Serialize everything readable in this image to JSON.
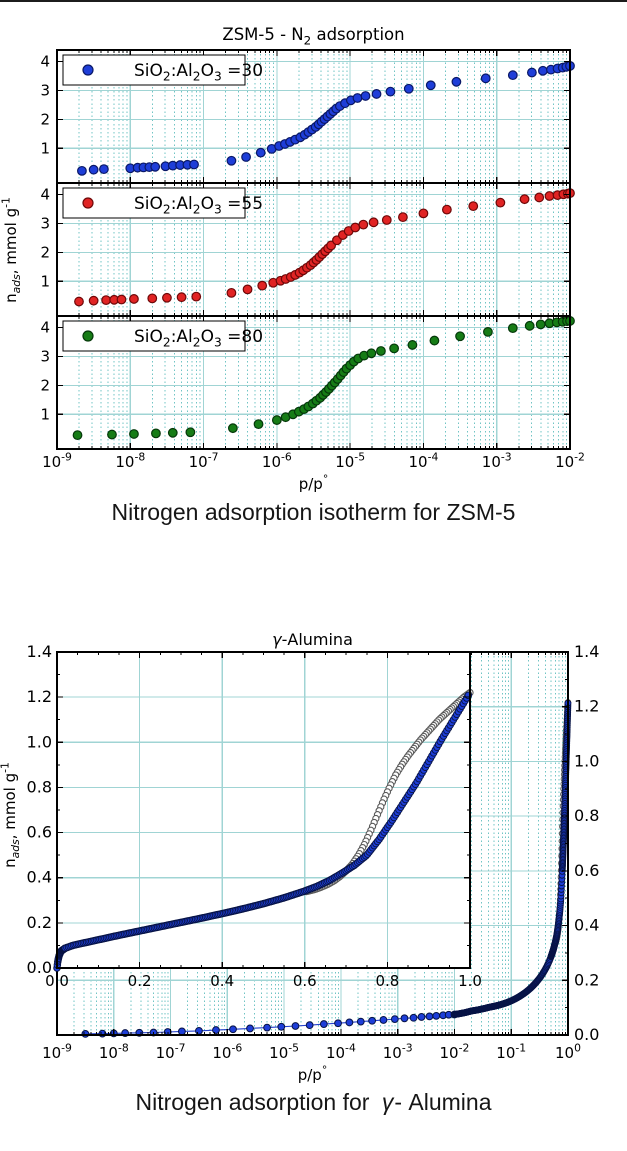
{
  "captions": {
    "fig1": "Nitrogen adsorption isotherm for ZSM-5",
    "fig2_pre": "Nitrogen adsorption for ",
    "fig2_gamma": "γ",
    "fig2_post": "- Alumina"
  },
  "style": {
    "grid_major": "#a0d4d4",
    "grid_minor": "#70c4c4",
    "axis_color": "#000000",
    "text_color": "#000000",
    "top_border": "#1c1c1c"
  },
  "chart_data": [
    {
      "id": "zsm5",
      "type": "scatter",
      "title": "ZSM-5 - N_{2} adsorption",
      "xlabel": "p/p^{°}",
      "ylabel": "n_{ads}, mmol g^{-1}",
      "xscale": "log",
      "xtick_exponents": [
        -9,
        -8,
        -7,
        -6,
        -5,
        -4,
        -3,
        -2
      ],
      "ylim": [
        -0.2,
        4.4
      ],
      "yticks": [
        1,
        2,
        3,
        4
      ],
      "grid": "major solid + minor dotted (log decades)",
      "legend_position": "upper left",
      "series": [
        {
          "name": "ratio-30",
          "legend": "SiO_{2}:Al_{2}O_{3} =30",
          "color": "#1e3ed8",
          "edge": "#0a1866",
          "points": [
            [
              -8.66,
              0.22
            ],
            [
              -8.5,
              0.26
            ],
            [
              -8.36,
              0.28
            ],
            [
              -8.0,
              0.31
            ],
            [
              -7.9,
              0.33
            ],
            [
              -7.82,
              0.34
            ],
            [
              -7.74,
              0.35
            ],
            [
              -7.66,
              0.36
            ],
            [
              -7.52,
              0.38
            ],
            [
              -7.42,
              0.4
            ],
            [
              -7.32,
              0.42
            ],
            [
              -7.22,
              0.43
            ],
            [
              -7.13,
              0.44
            ],
            [
              -6.62,
              0.57
            ],
            [
              -6.42,
              0.7
            ],
            [
              -6.22,
              0.85
            ],
            [
              -6.07,
              0.98
            ],
            [
              -5.97,
              1.08
            ],
            [
              -5.89,
              1.15
            ],
            [
              -5.82,
              1.22
            ],
            [
              -5.75,
              1.3
            ],
            [
              -5.68,
              1.38
            ],
            [
              -5.62,
              1.47
            ],
            [
              -5.57,
              1.56
            ],
            [
              -5.52,
              1.65
            ],
            [
              -5.47,
              1.74
            ],
            [
              -5.43,
              1.83
            ],
            [
              -5.39,
              1.92
            ],
            [
              -5.35,
              2.01
            ],
            [
              -5.31,
              2.1
            ],
            [
              -5.27,
              2.19
            ],
            [
              -5.23,
              2.28
            ],
            [
              -5.19,
              2.37
            ],
            [
              -5.14,
              2.46
            ],
            [
              -5.07,
              2.56
            ],
            [
              -4.99,
              2.66
            ],
            [
              -4.9,
              2.74
            ],
            [
              -4.79,
              2.81
            ],
            [
              -4.64,
              2.88
            ],
            [
              -4.45,
              2.96
            ],
            [
              -4.2,
              3.06
            ],
            [
              -3.9,
              3.18
            ],
            [
              -3.55,
              3.3
            ],
            [
              -3.15,
              3.42
            ],
            [
              -2.78,
              3.53
            ],
            [
              -2.52,
              3.62
            ],
            [
              -2.37,
              3.68
            ],
            [
              -2.26,
              3.72
            ],
            [
              -2.17,
              3.76
            ],
            [
              -2.1,
              3.79
            ],
            [
              -2.05,
              3.82
            ],
            [
              -2.0,
              3.85
            ]
          ]
        },
        {
          "name": "ratio-55",
          "legend": "SiO_{2}:Al_{2}O_{3} =55",
          "color": "#e02424",
          "edge": "#6e0808",
          "points": [
            [
              -8.7,
              0.3
            ],
            [
              -8.5,
              0.33
            ],
            [
              -8.33,
              0.35
            ],
            [
              -8.22,
              0.36
            ],
            [
              -8.12,
              0.37
            ],
            [
              -7.95,
              0.39
            ],
            [
              -7.7,
              0.41
            ],
            [
              -7.5,
              0.43
            ],
            [
              -7.3,
              0.45
            ],
            [
              -7.1,
              0.47
            ],
            [
              -6.62,
              0.6
            ],
            [
              -6.4,
              0.72
            ],
            [
              -6.2,
              0.85
            ],
            [
              -6.05,
              0.95
            ],
            [
              -5.95,
              1.02
            ],
            [
              -5.88,
              1.08
            ],
            [
              -5.81,
              1.15
            ],
            [
              -5.75,
              1.22
            ],
            [
              -5.69,
              1.3
            ],
            [
              -5.64,
              1.38
            ],
            [
              -5.59,
              1.47
            ],
            [
              -5.54,
              1.56
            ],
            [
              -5.5,
              1.65
            ],
            [
              -5.46,
              1.74
            ],
            [
              -5.42,
              1.84
            ],
            [
              -5.38,
              1.94
            ],
            [
              -5.34,
              2.04
            ],
            [
              -5.3,
              2.14
            ],
            [
              -5.26,
              2.24
            ],
            [
              -5.18,
              2.42
            ],
            [
              -5.1,
              2.6
            ],
            [
              -5.02,
              2.74
            ],
            [
              -4.93,
              2.86
            ],
            [
              -4.82,
              2.96
            ],
            [
              -4.68,
              3.04
            ],
            [
              -4.5,
              3.12
            ],
            [
              -4.28,
              3.22
            ],
            [
              -4.0,
              3.35
            ],
            [
              -3.68,
              3.48
            ],
            [
              -3.32,
              3.6
            ],
            [
              -2.95,
              3.72
            ],
            [
              -2.62,
              3.84
            ],
            [
              -2.42,
              3.9
            ],
            [
              -2.28,
              3.95
            ],
            [
              -2.17,
              3.98
            ],
            [
              -2.09,
              4.01
            ],
            [
              -2.03,
              4.03
            ],
            [
              -2.0,
              4.05
            ]
          ]
        },
        {
          "name": "ratio-80",
          "legend": "SiO_{2}:Al_{2}O_{3} =80",
          "color": "#167c16",
          "edge": "#05380a",
          "points": [
            [
              -8.72,
              0.28
            ],
            [
              -8.25,
              0.3
            ],
            [
              -7.95,
              0.32
            ],
            [
              -7.65,
              0.34
            ],
            [
              -7.42,
              0.36
            ],
            [
              -7.18,
              0.38
            ],
            [
              -6.6,
              0.52
            ],
            [
              -6.25,
              0.66
            ],
            [
              -6.0,
              0.8
            ],
            [
              -5.88,
              0.9
            ],
            [
              -5.78,
              1.0
            ],
            [
              -5.7,
              1.09
            ],
            [
              -5.63,
              1.18
            ],
            [
              -5.57,
              1.27
            ],
            [
              -5.51,
              1.37
            ],
            [
              -5.46,
              1.47
            ],
            [
              -5.41,
              1.57
            ],
            [
              -5.37,
              1.67
            ],
            [
              -5.33,
              1.77
            ],
            [
              -5.29,
              1.88
            ],
            [
              -5.25,
              1.99
            ],
            [
              -5.21,
              2.1
            ],
            [
              -5.17,
              2.22
            ],
            [
              -5.13,
              2.34
            ],
            [
              -5.09,
              2.46
            ],
            [
              -5.05,
              2.58
            ],
            [
              -5.0,
              2.7
            ],
            [
              -4.95,
              2.82
            ],
            [
              -4.89,
              2.93
            ],
            [
              -4.81,
              3.03
            ],
            [
              -4.71,
              3.11
            ],
            [
              -4.58,
              3.19
            ],
            [
              -4.4,
              3.28
            ],
            [
              -4.15,
              3.4
            ],
            [
              -3.85,
              3.55
            ],
            [
              -3.5,
              3.7
            ],
            [
              -3.12,
              3.85
            ],
            [
              -2.78,
              3.98
            ],
            [
              -2.55,
              4.06
            ],
            [
              -2.4,
              4.11
            ],
            [
              -2.28,
              4.15
            ],
            [
              -2.18,
              4.18
            ],
            [
              -2.1,
              4.2
            ],
            [
              -2.04,
              4.22
            ],
            [
              -2.0,
              4.23
            ]
          ]
        }
      ]
    },
    {
      "id": "gamma-alumina",
      "type": "scatter-line with inset",
      "title_italic": "γ",
      "title_rest": "-Alumina",
      "xlabel": "p/p^{°}",
      "ylabel": "n_{ads}, mmol g^{-1}",
      "xscale": "log",
      "xtick_exponents": [
        -9,
        -8,
        -7,
        -6,
        -5,
        -4,
        -3,
        -2,
        -1,
        0
      ],
      "ylim": [
        0,
        1.4
      ],
      "yticks_right": [
        0.0,
        0.2,
        0.4,
        0.6,
        0.8,
        1.0,
        1.2,
        1.4
      ],
      "colors": {
        "adsorption_fill": "#1e3ed8",
        "adsorption_edge": "#071345",
        "line": "#2340cc",
        "desorption_edge": "#5a5a5a",
        "desorption_fill": "#ffffff"
      },
      "main_sparse_logx_y": [
        [
          -8.5,
          0.004
        ],
        [
          -8.2,
          0.005
        ],
        [
          -8.0,
          0.006
        ],
        [
          -7.8,
          0.007
        ],
        [
          -7.55,
          0.008
        ],
        [
          -7.3,
          0.009
        ],
        [
          -7.05,
          0.011
        ],
        [
          -6.8,
          0.013
        ],
        [
          -6.5,
          0.015
        ],
        [
          -6.2,
          0.018
        ],
        [
          -5.9,
          0.021
        ],
        [
          -5.6,
          0.024
        ],
        [
          -5.3,
          0.027
        ],
        [
          -5.05,
          0.03
        ],
        [
          -4.8,
          0.033
        ],
        [
          -4.55,
          0.036
        ],
        [
          -4.3,
          0.04
        ],
        [
          -4.05,
          0.043
        ],
        [
          -3.85,
          0.046
        ],
        [
          -3.65,
          0.049
        ],
        [
          -3.45,
          0.052
        ],
        [
          -3.25,
          0.055
        ],
        [
          -3.05,
          0.058
        ],
        [
          -2.88,
          0.061
        ],
        [
          -2.72,
          0.063
        ],
        [
          -2.58,
          0.066
        ],
        [
          -2.44,
          0.068
        ],
        [
          -2.32,
          0.07
        ],
        [
          -2.2,
          0.072
        ],
        [
          -2.1,
          0.074
        ],
        [
          -2.0,
          0.075
        ]
      ],
      "adsorption_p_y": [
        [
          0,
          0
        ],
        [
          0.002,
          0.03
        ],
        [
          0.005,
          0.055
        ],
        [
          0.01,
          0.075
        ],
        [
          0.02,
          0.088
        ],
        [
          0.04,
          0.101
        ],
        [
          0.07,
          0.113
        ],
        [
          0.1,
          0.125
        ],
        [
          0.15,
          0.145
        ],
        [
          0.2,
          0.164
        ],
        [
          0.25,
          0.183
        ],
        [
          0.3,
          0.202
        ],
        [
          0.35,
          0.221
        ],
        [
          0.4,
          0.241
        ],
        [
          0.45,
          0.262
        ],
        [
          0.5,
          0.285
        ],
        [
          0.55,
          0.311
        ],
        [
          0.6,
          0.341
        ],
        [
          0.63,
          0.362
        ],
        [
          0.66,
          0.388
        ],
        [
          0.69,
          0.42
        ],
        [
          0.72,
          0.455
        ],
        [
          0.75,
          0.5
        ],
        [
          0.78,
          0.57
        ],
        [
          0.81,
          0.65
        ],
        [
          0.84,
          0.735
        ],
        [
          0.87,
          0.82
        ],
        [
          0.9,
          0.915
        ],
        [
          0.93,
          1.01
        ],
        [
          0.96,
          1.1
        ],
        [
          0.98,
          1.16
        ],
        [
          1.0,
          1.22
        ]
      ],
      "desorption_p_y": [
        [
          0.6,
          0.337
        ],
        [
          0.61,
          0.341
        ],
        [
          0.625,
          0.348
        ],
        [
          0.64,
          0.358
        ],
        [
          0.655,
          0.37
        ],
        [
          0.67,
          0.385
        ],
        [
          0.685,
          0.405
        ],
        [
          0.7,
          0.43
        ],
        [
          0.715,
          0.46
        ],
        [
          0.73,
          0.5
        ],
        [
          0.745,
          0.55
        ],
        [
          0.76,
          0.61
        ],
        [
          0.775,
          0.675
        ],
        [
          0.79,
          0.74
        ],
        [
          0.805,
          0.8
        ],
        [
          0.82,
          0.855
        ],
        [
          0.835,
          0.9
        ],
        [
          0.85,
          0.94
        ],
        [
          0.865,
          0.975
        ],
        [
          0.88,
          1.01
        ],
        [
          0.895,
          1.04
        ],
        [
          0.91,
          1.07
        ],
        [
          0.925,
          1.1
        ],
        [
          0.94,
          1.125
        ],
        [
          0.955,
          1.15
        ],
        [
          0.97,
          1.175
        ],
        [
          0.985,
          1.2
        ],
        [
          1.0,
          1.22
        ]
      ],
      "inset": {
        "xlim": [
          0.0,
          1.0
        ],
        "xticks": [
          0.0,
          0.2,
          0.4,
          0.6,
          0.8,
          1.0
        ],
        "ylim": [
          0,
          1.4
        ],
        "yticks_left": [
          0.0,
          0.2,
          0.4,
          0.6,
          0.8,
          1.0,
          1.2,
          1.4
        ]
      }
    }
  ]
}
